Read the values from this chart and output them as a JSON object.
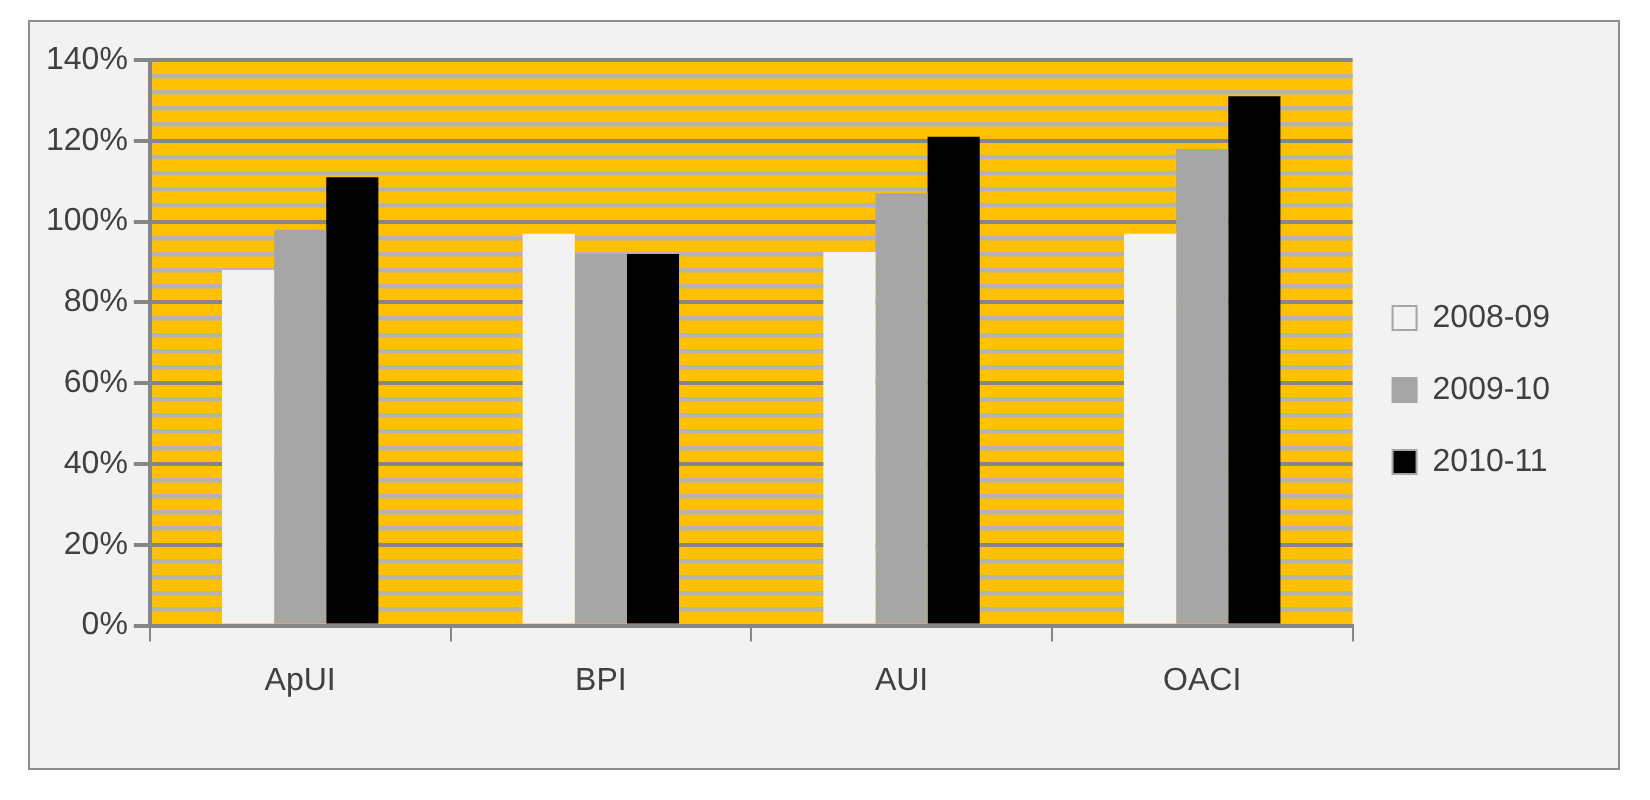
{
  "chart_data": {
    "type": "bar",
    "categories": [
      "ApUI",
      "BPI",
      "AUI",
      "OACI"
    ],
    "series": [
      {
        "name": "2008-09",
        "color": "#f2f2f2",
        "values": [
          88,
          97,
          92.5,
          97
        ]
      },
      {
        "name": "2009-10",
        "color": "#a6a6a6",
        "values": [
          98,
          92,
          107,
          118
        ]
      },
      {
        "name": "2010-11",
        "color": "#000000",
        "values": [
          111,
          92,
          121,
          131
        ]
      }
    ],
    "ylim": [
      0,
      140
    ],
    "yticks": [
      {
        "value": 0,
        "label": "0%"
      },
      {
        "value": 4,
        "label": null
      },
      {
        "value": 8,
        "label": null
      },
      {
        "value": 12,
        "label": null
      },
      {
        "value": 16,
        "label": null
      },
      {
        "value": 20,
        "label": "20%"
      },
      {
        "value": 24,
        "label": null
      },
      {
        "value": 28,
        "label": null
      },
      {
        "value": 32,
        "label": null
      },
      {
        "value": 36,
        "label": null
      },
      {
        "value": 40,
        "label": "40%"
      },
      {
        "value": 44,
        "label": null
      },
      {
        "value": 48,
        "label": null
      },
      {
        "value": 52,
        "label": null
      },
      {
        "value": 56,
        "label": null
      },
      {
        "value": 60,
        "label": "60%"
      },
      {
        "value": 64,
        "label": null
      },
      {
        "value": 68,
        "label": null
      },
      {
        "value": 72,
        "label": null
      },
      {
        "value": 76,
        "label": null
      },
      {
        "value": 80,
        "label": "80%"
      },
      {
        "value": 84,
        "label": null
      },
      {
        "value": 88,
        "label": null
      },
      {
        "value": 92,
        "label": null
      },
      {
        "value": 96,
        "label": null
      },
      {
        "value": 100,
        "label": "100%"
      },
      {
        "value": 104,
        "label": null
      },
      {
        "value": 108,
        "label": null
      },
      {
        "value": 112,
        "label": null
      },
      {
        "value": 116,
        "label": null
      },
      {
        "value": 120,
        "label": "120%"
      },
      {
        "value": 124,
        "label": null
      },
      {
        "value": 128,
        "label": null
      },
      {
        "value": 132,
        "label": null
      },
      {
        "value": 136,
        "label": null
      },
      {
        "value": 140,
        "label": "140%"
      }
    ],
    "grid": true,
    "legend": "right"
  }
}
